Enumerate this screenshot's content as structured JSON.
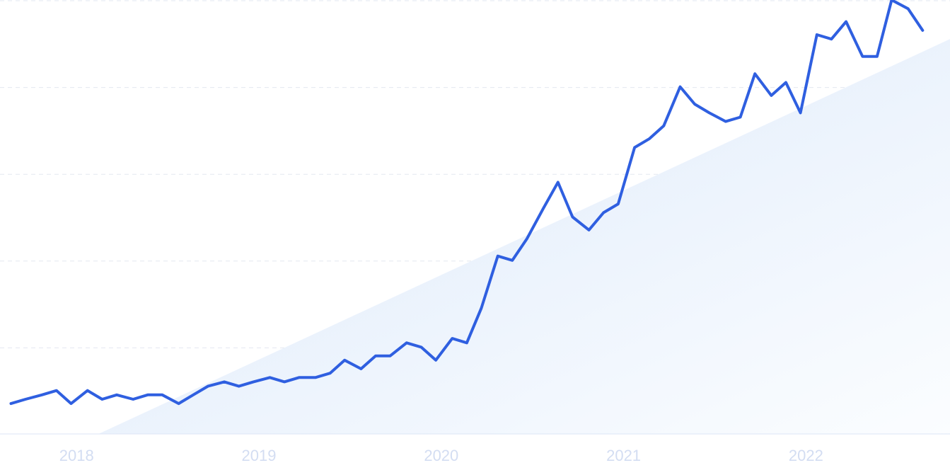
{
  "chart_data": {
    "type": "line",
    "title": "",
    "xlabel": "",
    "ylabel": "",
    "x_tick_labels": [
      "2018",
      "2019",
      "2020",
      "2021",
      "2022"
    ],
    "x_tick_values": [
      2018.0,
      2019.0,
      2020.0,
      2021.0,
      2022.0
    ],
    "xlim": [
      2017.58,
      2022.79
    ],
    "ylim": [
      0,
      100
    ],
    "grid": true,
    "legend": "none",
    "trend_area": true,
    "series": [
      {
        "color": "#2f5fe0",
        "x": [
          2017.64,
          2017.72,
          2017.81,
          2017.89,
          2017.97,
          2018.06,
          2018.14,
          2018.22,
          2018.31,
          2018.39,
          2018.47,
          2018.56,
          2018.64,
          2018.72,
          2018.81,
          2018.89,
          2018.97,
          2019.06,
          2019.14,
          2019.22,
          2019.31,
          2019.39,
          2019.47,
          2019.56,
          2019.64,
          2019.72,
          2019.81,
          2019.89,
          2019.97,
          2020.06,
          2020.14,
          2020.22,
          2020.31,
          2020.39,
          2020.47,
          2020.56,
          2020.64,
          2020.72,
          2020.81,
          2020.89,
          2020.97,
          2021.06,
          2021.14,
          2021.22,
          2021.31,
          2021.39,
          2021.47,
          2021.56,
          2021.64,
          2021.72,
          2021.81,
          2021.89,
          2021.97,
          2022.06,
          2022.14,
          2022.22,
          2022.31,
          2022.39,
          2022.47,
          2022.56,
          2022.64
        ],
        "values": [
          7,
          8,
          9,
          10,
          7,
          10,
          8,
          9,
          8,
          9,
          9,
          7,
          9,
          11,
          12,
          11,
          12,
          13,
          12,
          13,
          13,
          14,
          17,
          15,
          18,
          18,
          21,
          20,
          17,
          22,
          21,
          29,
          41,
          40,
          45,
          52,
          58,
          50,
          47,
          51,
          53,
          66,
          68,
          71,
          80,
          76,
          74,
          72,
          73,
          83,
          78,
          81,
          74,
          92,
          91,
          95,
          87,
          87,
          100,
          98,
          93
        ]
      }
    ]
  }
}
